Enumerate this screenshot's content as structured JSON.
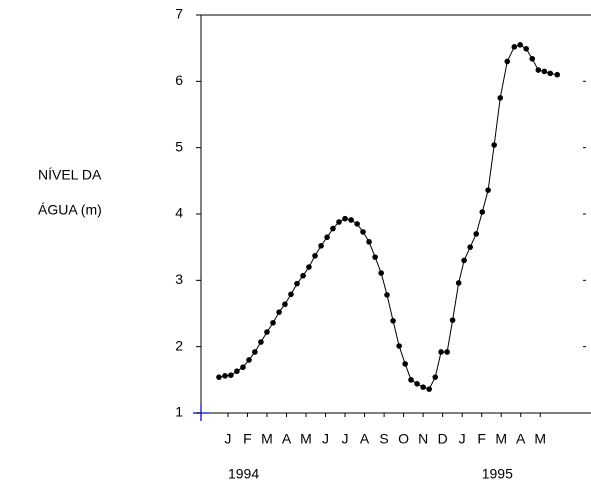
{
  "chart_data": {
    "type": "line",
    "ylabel": [
      "NÍVEL  DA",
      "ÁGUA (m)"
    ],
    "year_labels": [
      "1994",
      "1995"
    ],
    "xlim": [
      -1.38,
      18.6
    ],
    "xticks": [
      {
        "value": 0,
        "label": "J"
      },
      {
        "value": 1,
        "label": "F"
      },
      {
        "value": 2,
        "label": "M"
      },
      {
        "value": 3,
        "label": "A"
      },
      {
        "value": 4,
        "label": "M"
      },
      {
        "value": 5,
        "label": "J"
      },
      {
        "value": 6,
        "label": "J"
      },
      {
        "value": 7,
        "label": "A"
      },
      {
        "value": 8,
        "label": "S"
      },
      {
        "value": 9,
        "label": "O"
      },
      {
        "value": 10,
        "label": "N"
      },
      {
        "value": 11,
        "label": "D"
      },
      {
        "value": 12,
        "label": "J"
      },
      {
        "value": 13,
        "label": "F"
      },
      {
        "value": 14,
        "label": "M"
      },
      {
        "value": 15,
        "label": "A"
      },
      {
        "value": 16,
        "label": "M"
      }
    ],
    "ylim": [
      1,
      7
    ],
    "yticks": [
      1,
      2,
      3,
      4,
      5,
      6,
      7
    ],
    "color": "#000000",
    "x": [
      -0.46,
      -0.15,
      0.15,
      0.46,
      0.77,
      1.08,
      1.38,
      1.69,
      2.0,
      2.31,
      2.62,
      2.92,
      3.23,
      3.54,
      3.85,
      4.15,
      4.46,
      4.77,
      5.08,
      5.38,
      5.69,
      6.0,
      6.31,
      6.62,
      6.92,
      7.23,
      7.54,
      7.85,
      8.15,
      8.46,
      8.77,
      9.08,
      9.38,
      9.69,
      10.0,
      10.31,
      10.62,
      10.92,
      11.23,
      11.51,
      11.82,
      12.1,
      12.41,
      12.72,
      13.03,
      13.33,
      13.64,
      13.95,
      14.31,
      14.67,
      14.97,
      15.28,
      15.59,
      15.9,
      16.21,
      16.51,
      16.87
    ],
    "values": [
      1.54,
      1.56,
      1.57,
      1.63,
      1.69,
      1.8,
      1.92,
      2.07,
      2.22,
      2.36,
      2.52,
      2.64,
      2.79,
      2.95,
      3.07,
      3.2,
      3.37,
      3.52,
      3.65,
      3.78,
      3.88,
      3.93,
      3.91,
      3.85,
      3.73,
      3.58,
      3.35,
      3.11,
      2.78,
      2.39,
      2.01,
      1.74,
      1.5,
      1.44,
      1.39,
      1.36,
      1.54,
      1.92,
      1.92,
      2.4,
      2.96,
      3.3,
      3.5,
      3.7,
      4.03,
      4.36,
      5.04,
      5.75,
      6.3,
      6.52,
      6.55,
      6.49,
      6.34,
      6.17,
      6.15,
      6.12,
      6.1
    ]
  }
}
